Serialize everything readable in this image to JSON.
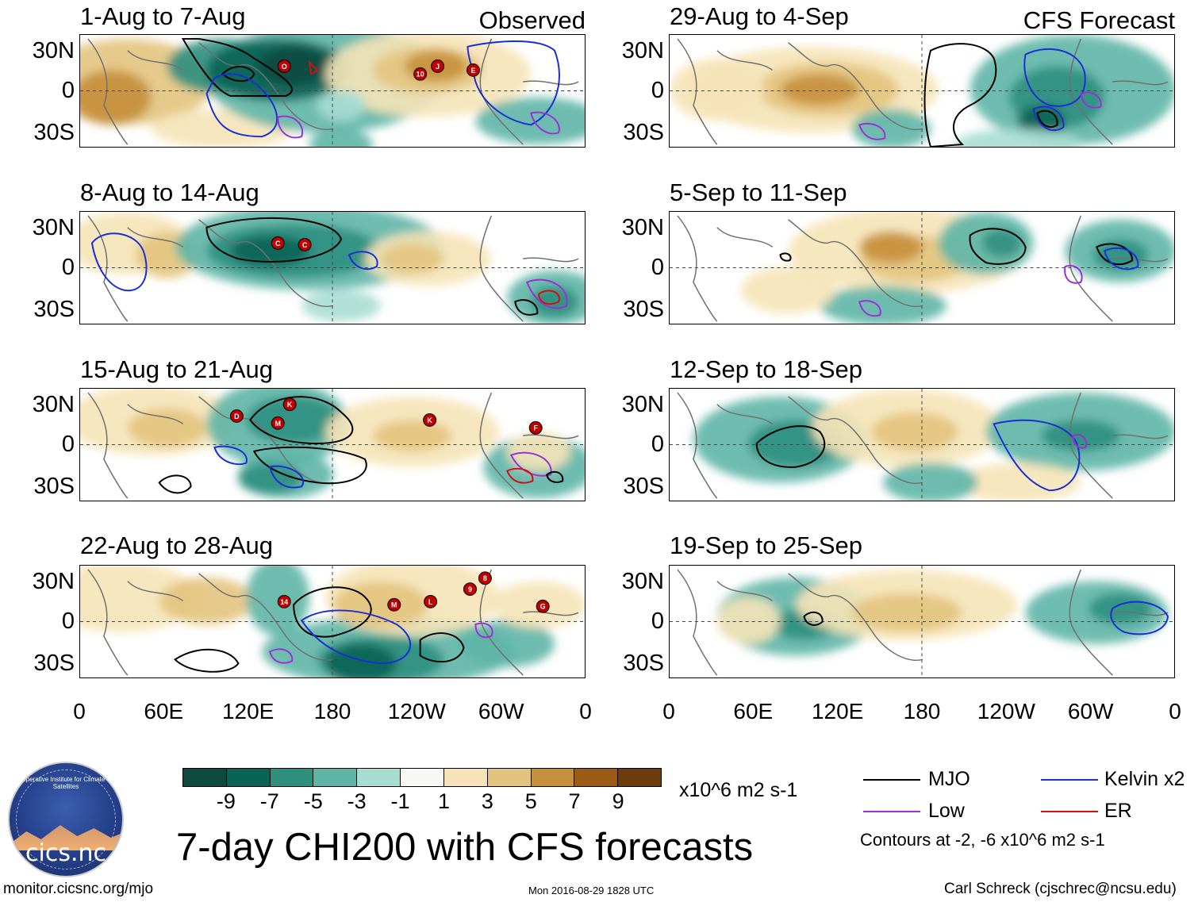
{
  "panels": [
    {
      "id": "p1",
      "title": "1-Aug to 7-Aug",
      "tag": "Observed"
    },
    {
      "id": "p2",
      "title": "8-Aug to 14-Aug",
      "tag": ""
    },
    {
      "id": "p3",
      "title": "15-Aug to 21-Aug",
      "tag": ""
    },
    {
      "id": "p4",
      "title": "22-Aug to 28-Aug",
      "tag": ""
    },
    {
      "id": "p5",
      "title": "29-Aug to 4-Sep",
      "tag": "CFS Forecast"
    },
    {
      "id": "p6",
      "title": "5-Sep to 11-Sep",
      "tag": ""
    },
    {
      "id": "p7",
      "title": "12-Sep to 18-Sep",
      "tag": ""
    },
    {
      "id": "p8",
      "title": "19-Sep to 25-Sep",
      "tag": ""
    }
  ],
  "lat_labels": [
    "30N",
    "0",
    "30S"
  ],
  "lon_labels": [
    "0",
    "60E",
    "120E",
    "180",
    "120W",
    "60W",
    "0"
  ],
  "colorbar": {
    "colors": [
      "#0f4a3f",
      "#0b6355",
      "#2f8f7f",
      "#5eb5a6",
      "#a8ddd2",
      "#f7f7f5",
      "#f6e4b8",
      "#e3c47e",
      "#c58f3b",
      "#9a5b17",
      "#6b3d0d"
    ],
    "labels": [
      "-9",
      "-7",
      "-5",
      "-3",
      "-1",
      "1",
      "3",
      "5",
      "7",
      "9"
    ],
    "units": "x10^6 m2 s-1"
  },
  "legend": {
    "items": [
      {
        "label": "MJO",
        "color": "#000000"
      },
      {
        "label": "Kelvin x2",
        "color": "#1a2fd6"
      },
      {
        "label": "Low",
        "color": "#9b30d8"
      },
      {
        "label": "ER",
        "color": "#d41010"
      }
    ],
    "note": "Contours at -2, -6 x10^6 m2 s-1"
  },
  "main_title": "7-day CHI200 with CFS forecasts",
  "footer": {
    "left": "monitor.cicsnc.org/mjo",
    "center": "Mon 2016-08-29 1828 UTC",
    "right": "Carl Schreck (cjschrec@ncsu.edu)"
  },
  "logo": {
    "text": "cics.nc",
    "arc_text": "Cooperative Institute for Climate and Satellites"
  },
  "storm_markers": {
    "p1": [
      "O",
      "10",
      "J",
      "E"
    ],
    "p2": [
      "C",
      "C"
    ],
    "p3": [
      "D",
      "K",
      "M",
      "K",
      "F"
    ],
    "p4": [
      "14",
      "M",
      "L",
      "9",
      "8",
      "G"
    ]
  }
}
